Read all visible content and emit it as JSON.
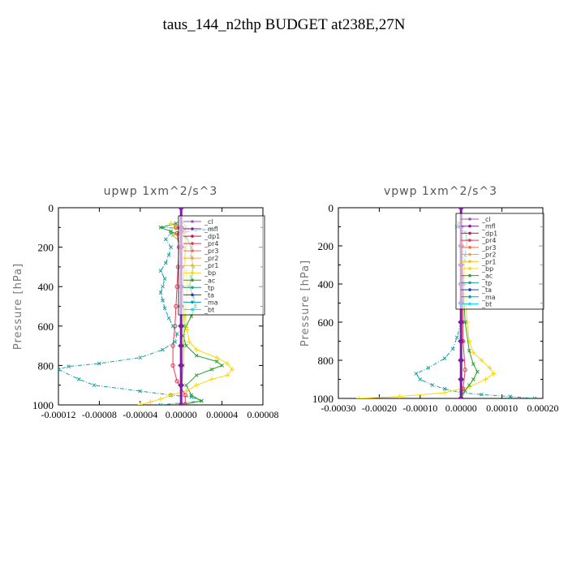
{
  "title": "taus_144_n2thp  BUDGET at238E,27N",
  "ylabel": "Pressure [hPa]",
  "legend_labels": [
    "_cl",
    "_mfl",
    "_dp1",
    "_pr4",
    "_pr3",
    "_pr2",
    "_pr1",
    "_bp",
    "_ac",
    "_tp",
    "_ta",
    "_ma",
    "_bt"
  ],
  "legend_colors": [
    "#9b59b6",
    "#7d1fa0",
    "#c2185b",
    "#e53950",
    "#ff6347",
    "#ffa040",
    "#f2c400",
    "#ffd700",
    "#2ca02c",
    "#1a9e9e",
    "#1f3fbf",
    "#00a0c0",
    "#00e5ff"
  ],
  "chart_data": [
    {
      "type": "line",
      "title": "upwp   1xm^2/s^3",
      "ylabel": "Pressure [hPa]",
      "xlim": [
        -0.00012,
        8e-05
      ],
      "ylim": [
        1000,
        0
      ],
      "xticks": [
        -0.00012,
        -8e-05,
        -4e-05,
        0.0,
        4e-05,
        8e-05
      ],
      "xticklabels": [
        "-0.00012",
        "-0.00008",
        "-0.00004",
        "0.00000",
        "0.00004",
        "0.00008"
      ],
      "yticks": [
        0,
        200,
        400,
        600,
        800,
        1000
      ],
      "yticklabels": [
        "0",
        "200",
        "400",
        "600",
        "800",
        "1000"
      ],
      "legend_position": "top-right",
      "series": [
        {
          "name": "_tp",
          "color": "#1a9e9e",
          "marker": "x",
          "x": [
            -5e-06,
            -2e-05,
            3e-05,
            -1e-05,
            -1.5e-05,
            -1e-05,
            -1.2e-05,
            -1.5e-05,
            -2e-05,
            -1.6e-05,
            -1.8e-05,
            -2e-05,
            -1.8e-05,
            -1.6e-05,
            -1.2e-05,
            -8e-06,
            -4e-06,
            -6e-06,
            -1.8e-05,
            -4e-05,
            -8e-05,
            -0.00011,
            -0.00012,
            -0.0001,
            -8.5e-05,
            -4e-05,
            -1e-05,
            1e-05,
            2e-05,
            -2e-05
          ],
          "y": [
            80,
            100,
            110,
            130,
            160,
            200,
            240,
            280,
            320,
            360,
            400,
            430,
            470,
            510,
            560,
            600,
            640,
            680,
            720,
            760,
            790,
            805,
            820,
            870,
            900,
            930,
            950,
            960,
            980,
            1000
          ]
        },
        {
          "name": "_bp",
          "color": "#2ca02c",
          "marker": "x",
          "x": [
            -5e-06,
            -2e-05,
            -1e-05,
            5e-06,
            1e-05,
            1e-05,
            1.2e-05,
            1e-05,
            8e-06,
            1.2e-05,
            1.4e-05,
            1e-05,
            5e-06,
            2e-06,
            5e-06,
            1.5e-05,
            3.5e-05,
            4e-05,
            3e-05,
            1.5e-05,
            5e-06,
            1e-05,
            2e-05,
            0.0
          ],
          "y": [
            80,
            100,
            120,
            150,
            200,
            250,
            300,
            350,
            400,
            450,
            500,
            550,
            600,
            650,
            700,
            750,
            780,
            800,
            820,
            850,
            900,
            950,
            980,
            1000
          ]
        },
        {
          "name": "_pr1",
          "color": "#ffd700",
          "marker": "+",
          "x": [
            -1e-05,
            -5e-06,
            2e-06,
            5e-06,
            4e-06,
            5e-06,
            6e-06,
            5e-06,
            4e-06,
            6e-06,
            8e-06,
            1.5e-05,
            3.5e-05,
            4.5e-05,
            5e-05,
            4.5e-05,
            3e-05,
            1.5e-05,
            5e-06,
            -1e-05,
            -2e-05,
            -3e-05,
            -4e-05
          ],
          "y": [
            80,
            100,
            130,
            180,
            250,
            320,
            400,
            480,
            550,
            620,
            680,
            720,
            760,
            790,
            820,
            850,
            870,
            900,
            930,
            950,
            970,
            985,
            1000
          ]
        },
        {
          "name": "_ac",
          "color": "#9acd32",
          "marker": "x",
          "x": [
            0.0,
            5e-06,
            -8e-06,
            4e-06,
            2e-06,
            3e-06,
            2e-06,
            0.0
          ],
          "y": [
            60,
            100,
            140,
            200,
            400,
            600,
            800,
            1000
          ]
        },
        {
          "name": "_pr4",
          "color": "#e53950",
          "marker": "o",
          "x": [
            -5e-06,
            3e-06,
            -4e-06,
            -2e-06,
            -3e-06,
            -4e-06,
            -5e-06,
            -6e-06,
            -8e-06,
            -8e-06,
            -4e-06,
            4e-06,
            4e-06
          ],
          "y": [
            100,
            120,
            130,
            200,
            300,
            400,
            500,
            600,
            700,
            800,
            880,
            950,
            1000
          ]
        },
        {
          "name": "_mfl",
          "color": "#7d1fa0",
          "marker": "diamond",
          "x": [
            0,
            0,
            0,
            0,
            0,
            0,
            0,
            0,
            0,
            0,
            0
          ],
          "y": [
            0,
            100,
            200,
            300,
            400,
            500,
            600,
            700,
            800,
            900,
            1000
          ]
        }
      ]
    },
    {
      "type": "line",
      "title": "vpwp   1xm^2/s^3",
      "ylabel": "Pressure [hPa]",
      "xlim": [
        -0.0003,
        0.0002
      ],
      "ylim": [
        1000,
        0
      ],
      "xticks": [
        -0.0003,
        -0.0002,
        -0.0001,
        0.0,
        0.0001,
        0.0002
      ],
      "xticklabels": [
        "-0.00030",
        "-0.00020",
        "-0.00010",
        "0.00000",
        "0.00010",
        "0.00020"
      ],
      "yticks": [
        0,
        200,
        400,
        600,
        800,
        1000
      ],
      "yticklabels": [
        "0",
        "200",
        "400",
        "600",
        "800",
        "1000"
      ],
      "legend_position": "top-right",
      "series": [
        {
          "name": "_tp",
          "color": "#1a9e9e",
          "marker": "x",
          "x": [
            -5e-06,
            -1e-05,
            1e-05,
            1.5e-05,
            1e-05,
            0.0,
            -1e-05,
            -2e-05,
            -4e-05,
            -8e-05,
            -0.00011,
            -0.0001,
            -7e-05,
            -4e-05,
            0.0,
            5e-05,
            0.00012,
            0.00018
          ],
          "y": [
            80,
            100,
            130,
            170,
            250,
            600,
            680,
            740,
            790,
            840,
            870,
            900,
            930,
            950,
            970,
            980,
            990,
            1000
          ]
        },
        {
          "name": "_pr1",
          "color": "#ffd700",
          "marker": "+",
          "x": [
            0.0,
            5e-06,
            1e-05,
            1.5e-05,
            2e-05,
            3e-05,
            5e-05,
            7e-05,
            8e-05,
            6e-05,
            2e-05,
            -4e-05,
            -0.00015,
            -0.00025
          ],
          "y": [
            80,
            200,
            400,
            600,
            700,
            760,
            800,
            840,
            870,
            900,
            940,
            970,
            990,
            1000
          ]
        },
        {
          "name": "_bp",
          "color": "#2ca02c",
          "marker": "x",
          "x": [
            0.0,
            1e-05,
            2e-05,
            3e-05,
            4e-05,
            3e-05,
            2e-05,
            1e-05,
            0.0
          ],
          "y": [
            200,
            600,
            750,
            820,
            860,
            900,
            930,
            960,
            1000
          ]
        },
        {
          "name": "_pr4",
          "color": "#e53950",
          "marker": "o",
          "x": [
            0.0,
            5e-06,
            5e-06,
            1e-05,
            5e-06,
            0.0
          ],
          "y": [
            100,
            400,
            700,
            850,
            950,
            1000
          ]
        },
        {
          "name": "_mfl",
          "color": "#7d1fa0",
          "marker": "diamond",
          "x": [
            0,
            0,
            0,
            0,
            0,
            0,
            0,
            0,
            0,
            0,
            0
          ],
          "y": [
            0,
            100,
            200,
            300,
            400,
            500,
            600,
            700,
            800,
            900,
            1000
          ]
        }
      ]
    }
  ]
}
